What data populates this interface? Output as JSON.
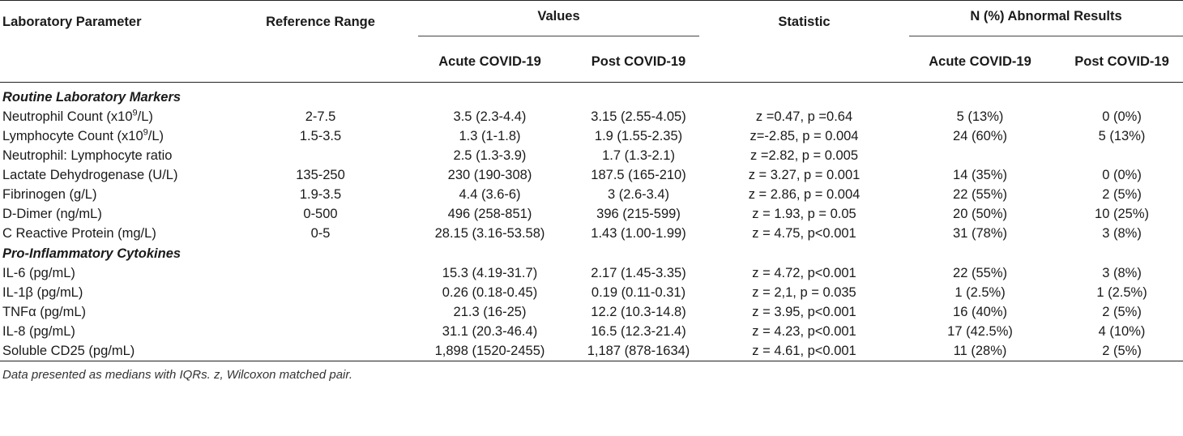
{
  "headers": {
    "parameter": "Laboratory Parameter",
    "reference": "Reference Range",
    "values": "Values",
    "statistic": "Statistic",
    "abnormal": "N (%) Abnormal Results",
    "acute1": "Acute COVID-19",
    "post1": "Post COVID-19",
    "acute2": "Acute COVID-19",
    "post2": "Post COVID-19"
  },
  "sections": [
    {
      "title": "Routine Laboratory Markers",
      "rows": [
        {
          "param_main": "Neutrophil Count (x10",
          "param_sup": "9",
          "param_tail": "/L)",
          "ref": "2-7.5",
          "acute": "3.5 (2.3-4.4)",
          "post": "3.15 (2.55-4.05)",
          "stat": "z =0.47, p =0.64",
          "abn_acute": "5 (13%)",
          "abn_post": "0 (0%)"
        },
        {
          "param_main": "Lymphocyte Count (x10",
          "param_sup": "9",
          "param_tail": "/L)",
          "ref": "1.5-3.5",
          "acute": "1.3 (1-1.8)",
          "post": "1.9 (1.55-2.35)",
          "stat": "z=-2.85, p = 0.004",
          "abn_acute": "24 (60%)",
          "abn_post": "5 (13%)"
        },
        {
          "param_main": "Neutrophil: Lymphocyte ratio",
          "param_sup": "",
          "param_tail": "",
          "ref": "",
          "acute": "2.5 (1.3-3.9)",
          "post": "1.7 (1.3-2.1)",
          "stat": "z =2.82, p = 0.005",
          "abn_acute": "",
          "abn_post": ""
        },
        {
          "param_main": "Lactate Dehydrogenase (U/L)",
          "param_sup": "",
          "param_tail": "",
          "ref": "135-250",
          "acute": "230 (190-308)",
          "post": "187.5 (165-210)",
          "stat": "z = 3.27, p = 0.001",
          "abn_acute": "14 (35%)",
          "abn_post": "0 (0%)"
        },
        {
          "param_main": "Fibrinogen (g/L)",
          "param_sup": "",
          "param_tail": "",
          "ref": "1.9-3.5",
          "acute": "4.4 (3.6-6)",
          "post": "3 (2.6-3.4)",
          "stat": "z = 2.86, p = 0.004",
          "abn_acute": "22 (55%)",
          "abn_post": "2 (5%)"
        },
        {
          "param_main": "D-Dimer (ng/mL)",
          "param_sup": "",
          "param_tail": "",
          "ref": "0-500",
          "acute": "496 (258-851)",
          "post": "396 (215-599)",
          "stat": "z = 1.93, p = 0.05",
          "abn_acute": "20 (50%)",
          "abn_post": "10 (25%)"
        },
        {
          "param_main": "C Reactive Protein (mg/L)",
          "param_sup": "",
          "param_tail": "",
          "ref": "0-5",
          "acute": "28.15 (3.16-53.58)",
          "post": "1.43 (1.00-1.99)",
          "stat": "z = 4.75, p<0.001",
          "abn_acute": "31 (78%)",
          "abn_post": "3 (8%)"
        }
      ]
    },
    {
      "title": "Pro-Inflammatory Cytokines",
      "rows": [
        {
          "param_main": "IL-6 (pg/mL)",
          "param_sup": "",
          "param_tail": "",
          "ref": "",
          "acute": "15.3 (4.19-31.7)",
          "post": "2.17 (1.45-3.35)",
          "stat": "z = 4.72, p<0.001",
          "abn_acute": "22 (55%)",
          "abn_post": "3 (8%)"
        },
        {
          "param_main": "IL-1β (pg/mL)",
          "param_sup": "",
          "param_tail": "",
          "ref": "",
          "acute": "0.26 (0.18-0.45)",
          "post": "0.19 (0.11-0.31)",
          "stat": "z = 2,1, p = 0.035",
          "abn_acute": "1 (2.5%)",
          "abn_post": "1 (2.5%)"
        },
        {
          "param_main": "TNFα (pg/mL)",
          "param_sup": "",
          "param_tail": "",
          "ref": "",
          "acute": "21.3 (16-25)",
          "post": "12.2 (10.3-14.8)",
          "stat": "z = 3.95, p<0.001",
          "abn_acute": "16 (40%)",
          "abn_post": "2 (5%)"
        },
        {
          "param_main": "IL-8 (pg/mL)",
          "param_sup": "",
          "param_tail": "",
          "ref": "",
          "acute": "31.1 (20.3-46.4)",
          "post": "16.5 (12.3-21.4)",
          "stat": "z = 4.23, p<0.001",
          "abn_acute": "17 (42.5%)",
          "abn_post": "4 (10%)"
        },
        {
          "param_main": "Soluble CD25 (pg/mL)",
          "param_sup": "",
          "param_tail": "",
          "ref": "",
          "acute": "1,898 (1520-2455)",
          "post": "1,187 (878-1634)",
          "stat": "z = 4.61, p<0.001",
          "abn_acute": "11 (28%)",
          "abn_post": "2 (5%)"
        }
      ]
    }
  ],
  "footnote": "Data presented as medians with IQRs. z, Wilcoxon matched pair."
}
